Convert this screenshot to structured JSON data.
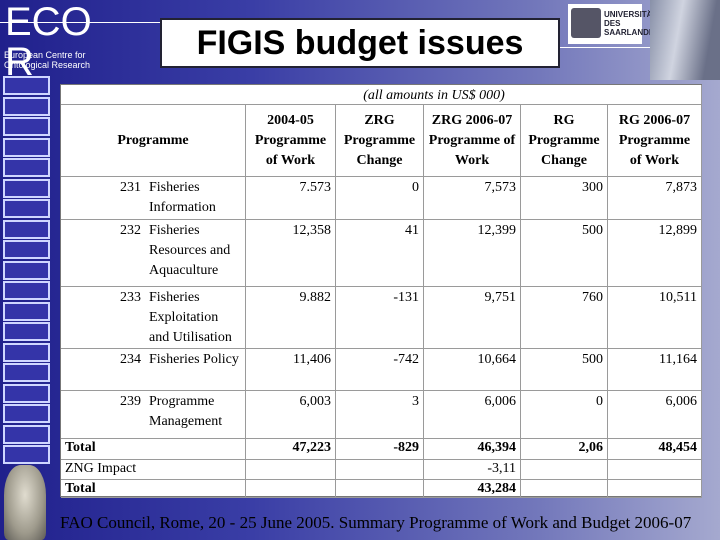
{
  "logo": {
    "letters": "ECO R",
    "subtitle": "European Centre for Ontological Research"
  },
  "header": {
    "title": "FIGIS budget issues",
    "university": "UNIVERSITÄT DES SAARLANDES"
  },
  "table": {
    "caption": "(all amounts in US$ 000)",
    "columns": [
      "Programme",
      "2004-05 Programme of Work",
      "ZRG Programme Change",
      "ZRG 2006-07 Programme of Work",
      "RG Programme Change",
      "RG 2006-07 Programme of Work"
    ],
    "rows": [
      [
        "231",
        "Fisheries Information",
        "7.573",
        "0",
        "7,573",
        "300",
        "7,873"
      ],
      [
        "232",
        "Fisheries Resources and Aquaculture",
        "12,358",
        "41",
        "12,399",
        "500",
        "12,899"
      ],
      [
        "233",
        "Fisheries Exploitation and Utilisation",
        "9.882",
        "-131",
        "9,751",
        "760",
        "10,511"
      ],
      [
        "234",
        "Fisheries Policy",
        "11,406",
        "-742",
        "10,664",
        "500",
        "11,164"
      ],
      [
        "239",
        "Programme Management",
        "6,003",
        "3",
        "6,006",
        "0",
        "6,006"
      ]
    ],
    "totals": [
      [
        "Total",
        "47,223",
        "-829",
        "46,394",
        "2,06",
        "48,454"
      ],
      [
        "ZNG Impact",
        null,
        null,
        "-3,11",
        null,
        null
      ],
      [
        "Total",
        null,
        null,
        "43,284",
        null,
        null
      ]
    ]
  },
  "footer": "FAO Council, Rome, 20 - 25 June 2005. Summary Programme of Work and Budget 2006-07"
}
